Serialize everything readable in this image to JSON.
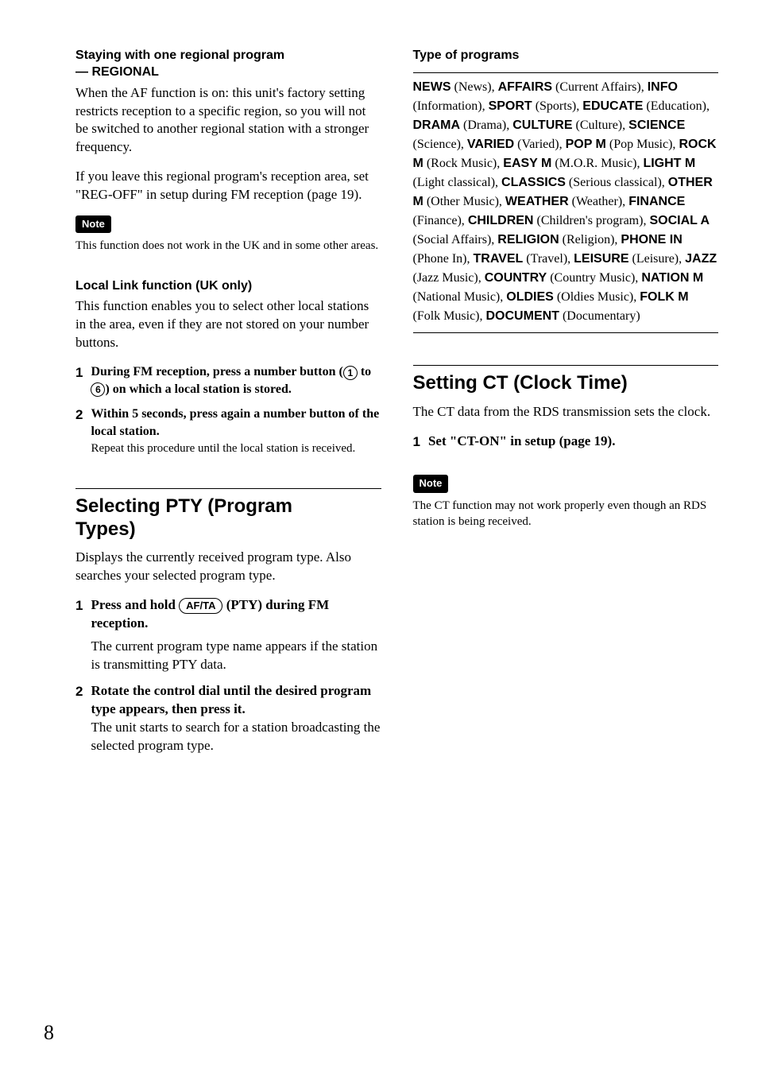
{
  "page_number": "8",
  "left": {
    "regional": {
      "heading_l1": "Staying with one regional program",
      "heading_l2": "— REGIONAL",
      "p1": "When the AF function is on: this unit's factory setting restricts reception to a specific region, so you will not be switched to another regional station with a stronger frequency.",
      "p2": "If you leave this regional program's reception area, set \"REG-OFF\" in setup during FM reception (page 19).",
      "note_label": "Note",
      "note_text": "This function does not work in the UK and in some other areas."
    },
    "locallink": {
      "heading": "Local Link function (UK only)",
      "p1": "This function enables you to select other local stations in the area, even if they are not stored on your number buttons.",
      "step1_pre": "During FM reception, press a number button (",
      "step1_num1": "1",
      "step1_mid": " to ",
      "step1_num6": "6",
      "step1_post": ") on which a local station is stored.",
      "step2_bold": "Within 5 seconds, press again a number button of the local station.",
      "step2_reg": "Repeat this procedure until the local station is received."
    },
    "pty": {
      "heading_l1": "Selecting PTY (Program",
      "heading_l2": "Types)",
      "p1": "Displays the currently received program type. Also searches your selected program type.",
      "step1_pre": "Press and hold ",
      "step1_key": "AF/TA",
      "step1_post": " (PTY) during FM reception.",
      "step1_body": "The current program type name appears if the station is transmitting PTY data.",
      "step2_bold": "Rotate the control dial until the desired program type appears, then press it.",
      "step2_reg": "The unit starts to search for a station broadcasting the selected program type."
    }
  },
  "right": {
    "types_heading": "Type of programs",
    "types": [
      {
        "b": "NEWS",
        "d": "News"
      },
      {
        "b": "AFFAIRS",
        "d": "Current Affairs"
      },
      {
        "b": "INFO",
        "d": "Information"
      },
      {
        "b": "SPORT",
        "d": "Sports"
      },
      {
        "b": "EDUCATE",
        "d": "Education"
      },
      {
        "b": "DRAMA",
        "d": "Drama"
      },
      {
        "b": "CULTURE",
        "d": "Culture"
      },
      {
        "b": "SCIENCE",
        "d": "Science"
      },
      {
        "b": "VARIED",
        "d": "Varied"
      },
      {
        "b": "POP M",
        "d": "Pop Music"
      },
      {
        "b": "ROCK M",
        "d": "Rock Music"
      },
      {
        "b": "EASY M",
        "d": "M.O.R. Music"
      },
      {
        "b": "LIGHT M",
        "d": "Light classical"
      },
      {
        "b": "CLASSICS",
        "d": "Serious classical"
      },
      {
        "b": "OTHER M",
        "d": "Other Music"
      },
      {
        "b": "WEATHER",
        "d": "Weather"
      },
      {
        "b": "FINANCE",
        "d": "Finance"
      },
      {
        "b": "CHILDREN",
        "d": "Children's program"
      },
      {
        "b": "SOCIAL A",
        "d": "Social Affairs"
      },
      {
        "b": "RELIGION",
        "d": "Religion"
      },
      {
        "b": "PHONE IN",
        "d": "Phone In"
      },
      {
        "b": "TRAVEL",
        "d": "Travel"
      },
      {
        "b": "LEISURE",
        "d": "Leisure"
      },
      {
        "b": "JAZZ",
        "d": "Jazz Music"
      },
      {
        "b": "COUNTRY",
        "d": "Country Music"
      },
      {
        "b": "NATION M",
        "d": "National Music"
      },
      {
        "b": "OLDIES",
        "d": "Oldies Music"
      },
      {
        "b": "FOLK M",
        "d": "Folk Music"
      },
      {
        "b": "DOCUMENT",
        "d": "Documentary"
      }
    ],
    "ct": {
      "heading": "Setting CT (Clock Time)",
      "p1": "The CT data from the RDS transmission sets the clock.",
      "step1": "Set \"CT-ON\" in setup (page 19).",
      "note_label": "Note",
      "note_text": "The CT function may not work properly even though an RDS station is being received."
    }
  }
}
